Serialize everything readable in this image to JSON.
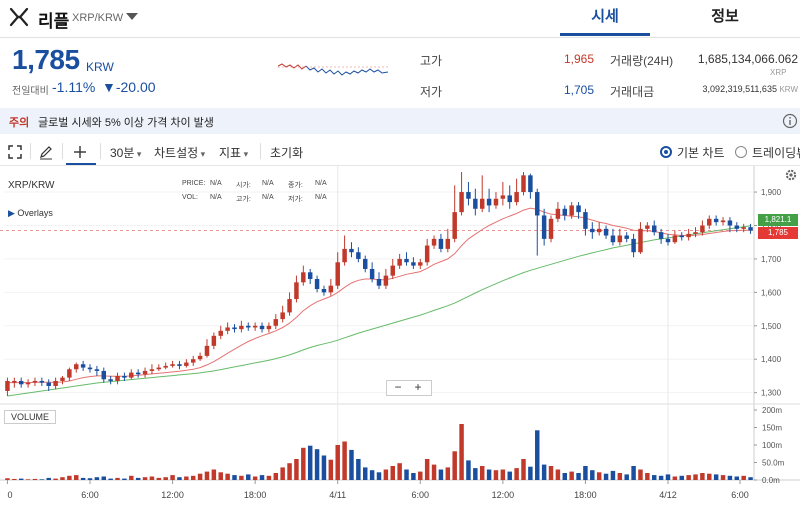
{
  "header": {
    "coin_name": "리플",
    "pair": "XRP/KRW",
    "tabs": [
      {
        "label": "시세",
        "active": true
      },
      {
        "label": "정보",
        "active": false
      }
    ]
  },
  "price": {
    "current": "1,785",
    "unit": "KRW",
    "change_label": "전일대비",
    "change_pct": "-1.11%",
    "change_abs": "▼-20.00"
  },
  "stats": {
    "high_label": "고가",
    "high": "1,965",
    "low_label": "저가",
    "low": "1,705",
    "volume_label": "거래량(24H)",
    "volume": "1,685,134,066.062",
    "volume_unit": "XRP",
    "amount_label": "거래대금",
    "amount": "3,092,319,511,635",
    "amount_unit": "KRW"
  },
  "notice": {
    "tag": "주의",
    "text": "글로벌 시세와 5% 이상 가격 차이 발생"
  },
  "toolbar": {
    "interval": "30분",
    "chart_settings": "차트설정",
    "indicators": "지표",
    "reset": "초기화",
    "basic_chart": "기본 차트",
    "tradingview": "트레이딩뷰"
  },
  "colors": {
    "up": "#c0392b",
    "down": "#1a4fa0",
    "ma_fast": "#e57373",
    "ma_slow": "#66bb6a",
    "accent": "#1a4fa0"
  },
  "icons": [
    "ripple-logo-icon",
    "chevron-down-icon",
    "info-icon",
    "fullscreen-icon",
    "pencil-icon",
    "crosshair-icon",
    "settings-icon"
  ],
  "chart_data": {
    "type": "candlestick",
    "symbol": "XRP/KRW",
    "overlays_label": "Overlays",
    "ohlc_readout": {
      "labels": [
        "PRICE:",
        "시가:",
        "종가:",
        "VOL:",
        "고가:",
        "저가:"
      ],
      "values": [
        "N/A",
        "N/A",
        "N/A",
        "N/A",
        "N/A",
        "N/A"
      ]
    },
    "x_ticks": [
      "0",
      "6:00",
      "12:00",
      "18:00",
      "4/11",
      "6:00",
      "12:00",
      "18:00",
      "4/12",
      "6:00"
    ],
    "y_ticks": [
      "1,900",
      "1,800",
      "1,700",
      "1,600",
      "1,500",
      "1,400",
      "1,300"
    ],
    "y_range": [
      1290,
      1960
    ],
    "last_price_label": "1,785",
    "ma_label": "1,821.1",
    "zoom_out": "−",
    "zoom_in": "+",
    "volume_label": "VOLUME",
    "volume_ticks": [
      "200m",
      "150m",
      "100m",
      "50.0m",
      "0.0m"
    ],
    "volume_range": [
      0,
      200
    ],
    "candles": [
      [
        1305,
        1335,
        1290,
        1345
      ],
      [
        1330,
        1335,
        1315,
        1345
      ],
      [
        1335,
        1325,
        1315,
        1345
      ],
      [
        1325,
        1330,
        1315,
        1340
      ],
      [
        1330,
        1335,
        1320,
        1345
      ],
      [
        1335,
        1330,
        1320,
        1345
      ],
      [
        1330,
        1320,
        1305,
        1340
      ],
      [
        1320,
        1335,
        1310,
        1345
      ],
      [
        1335,
        1345,
        1325,
        1350
      ],
      [
        1345,
        1370,
        1335,
        1375
      ],
      [
        1370,
        1385,
        1360,
        1390
      ],
      [
        1385,
        1375,
        1365,
        1395
      ],
      [
        1375,
        1370,
        1360,
        1385
      ],
      [
        1370,
        1365,
        1350,
        1380
      ],
      [
        1365,
        1340,
        1330,
        1375
      ],
      [
        1340,
        1335,
        1325,
        1350
      ],
      [
        1335,
        1350,
        1325,
        1360
      ],
      [
        1350,
        1345,
        1335,
        1360
      ],
      [
        1345,
        1360,
        1340,
        1370
      ],
      [
        1360,
        1355,
        1345,
        1370
      ],
      [
        1355,
        1365,
        1345,
        1375
      ],
      [
        1365,
        1370,
        1355,
        1385
      ],
      [
        1370,
        1375,
        1365,
        1385
      ],
      [
        1375,
        1380,
        1370,
        1390
      ],
      [
        1380,
        1385,
        1375,
        1395
      ],
      [
        1385,
        1380,
        1370,
        1395
      ],
      [
        1380,
        1390,
        1375,
        1400
      ],
      [
        1390,
        1400,
        1380,
        1410
      ],
      [
        1400,
        1410,
        1395,
        1420
      ],
      [
        1410,
        1440,
        1405,
        1460
      ],
      [
        1440,
        1470,
        1430,
        1480
      ],
      [
        1470,
        1485,
        1460,
        1500
      ],
      [
        1485,
        1495,
        1475,
        1510
      ],
      [
        1495,
        1490,
        1480,
        1505
      ],
      [
        1490,
        1500,
        1480,
        1515
      ],
      [
        1500,
        1495,
        1485,
        1510
      ],
      [
        1495,
        1500,
        1485,
        1510
      ],
      [
        1500,
        1490,
        1480,
        1510
      ],
      [
        1490,
        1500,
        1480,
        1510
      ],
      [
        1500,
        1520,
        1490,
        1535
      ],
      [
        1520,
        1540,
        1510,
        1560
      ],
      [
        1540,
        1580,
        1530,
        1600
      ],
      [
        1580,
        1630,
        1570,
        1650
      ],
      [
        1630,
        1660,
        1620,
        1680
      ],
      [
        1660,
        1640,
        1625,
        1670
      ],
      [
        1640,
        1610,
        1600,
        1650
      ],
      [
        1610,
        1600,
        1590,
        1620
      ],
      [
        1600,
        1620,
        1590,
        1640
      ],
      [
        1620,
        1690,
        1610,
        1720
      ],
      [
        1690,
        1730,
        1680,
        1770
      ],
      [
        1730,
        1720,
        1705,
        1750
      ],
      [
        1720,
        1700,
        1690,
        1735
      ],
      [
        1700,
        1670,
        1660,
        1710
      ],
      [
        1670,
        1640,
        1630,
        1690
      ],
      [
        1640,
        1620,
        1610,
        1660
      ],
      [
        1620,
        1650,
        1610,
        1670
      ],
      [
        1650,
        1680,
        1640,
        1700
      ],
      [
        1680,
        1700,
        1670,
        1715
      ],
      [
        1700,
        1690,
        1680,
        1720
      ],
      [
        1690,
        1680,
        1670,
        1705
      ],
      [
        1680,
        1690,
        1670,
        1700
      ],
      [
        1690,
        1740,
        1680,
        1760
      ],
      [
        1740,
        1760,
        1730,
        1770
      ],
      [
        1760,
        1730,
        1720,
        1775
      ],
      [
        1730,
        1760,
        1720,
        1790
      ],
      [
        1760,
        1840,
        1750,
        1920
      ],
      [
        1840,
        1900,
        1830,
        1960
      ],
      [
        1900,
        1880,
        1860,
        1930
      ],
      [
        1880,
        1850,
        1830,
        1910
      ],
      [
        1850,
        1880,
        1840,
        1950
      ],
      [
        1880,
        1860,
        1840,
        1910
      ],
      [
        1860,
        1880,
        1850,
        1900
      ],
      [
        1880,
        1890,
        1860,
        1930
      ],
      [
        1890,
        1870,
        1850,
        1920
      ],
      [
        1870,
        1900,
        1860,
        1940
      ],
      [
        1900,
        1950,
        1890,
        1960
      ],
      [
        1950,
        1900,
        1880,
        1955
      ],
      [
        1900,
        1830,
        1710,
        1910
      ],
      [
        1830,
        1760,
        1740,
        1850
      ],
      [
        1760,
        1820,
        1750,
        1830
      ],
      [
        1820,
        1850,
        1810,
        1870
      ],
      [
        1850,
        1830,
        1815,
        1860
      ],
      [
        1830,
        1860,
        1820,
        1870
      ],
      [
        1860,
        1840,
        1820,
        1870
      ],
      [
        1840,
        1790,
        1770,
        1850
      ],
      [
        1790,
        1780,
        1760,
        1810
      ],
      [
        1780,
        1790,
        1770,
        1810
      ],
      [
        1790,
        1770,
        1760,
        1800
      ],
      [
        1770,
        1750,
        1740,
        1790
      ],
      [
        1750,
        1770,
        1740,
        1790
      ],
      [
        1770,
        1760,
        1750,
        1780
      ],
      [
        1760,
        1720,
        1705,
        1775
      ],
      [
        1720,
        1790,
        1715,
        1810
      ],
      [
        1790,
        1800,
        1780,
        1810
      ],
      [
        1800,
        1780,
        1770,
        1815
      ],
      [
        1780,
        1760,
        1745,
        1790
      ],
      [
        1760,
        1750,
        1740,
        1775
      ],
      [
        1750,
        1770,
        1745,
        1785
      ],
      [
        1770,
        1765,
        1755,
        1780
      ],
      [
        1765,
        1775,
        1755,
        1790
      ],
      [
        1775,
        1780,
        1765,
        1795
      ],
      [
        1780,
        1800,
        1770,
        1815
      ],
      [
        1800,
        1820,
        1790,
        1830
      ],
      [
        1820,
        1810,
        1800,
        1830
      ],
      [
        1810,
        1815,
        1800,
        1825
      ],
      [
        1815,
        1800,
        1780,
        1825
      ],
      [
        1800,
        1790,
        1780,
        1810
      ],
      [
        1790,
        1795,
        1780,
        1805
      ],
      [
        1795,
        1785,
        1775,
        1805
      ]
    ],
    "volume": [
      5,
      3,
      4,
      2,
      3,
      2,
      6,
      4,
      8,
      12,
      14,
      6,
      5,
      8,
      10,
      4,
      6,
      4,
      12,
      6,
      8,
      10,
      6,
      8,
      14,
      8,
      10,
      12,
      18,
      24,
      30,
      22,
      18,
      14,
      12,
      16,
      10,
      14,
      12,
      20,
      36,
      48,
      60,
      92,
      98,
      88,
      70,
      58,
      100,
      110,
      86,
      60,
      36,
      28,
      22,
      30,
      40,
      48,
      30,
      20,
      24,
      60,
      44,
      30,
      36,
      82,
      160,
      56,
      34,
      40,
      30,
      28,
      30,
      24,
      34,
      60,
      38,
      142,
      44,
      40,
      30,
      20,
      24,
      20,
      40,
      28,
      22,
      18,
      26,
      20,
      16,
      40,
      30,
      20,
      14,
      12,
      16,
      10,
      12,
      14,
      16,
      20,
      18,
      16,
      14,
      12,
      10,
      12,
      8
    ],
    "ma_fast": [
      1330,
      1330,
      1330,
      1330,
      1331,
      1331,
      1331,
      1331,
      1332,
      1335,
      1340,
      1345,
      1348,
      1350,
      1350,
      1349,
      1349,
      1349,
      1350,
      1352,
      1354,
      1356,
      1358,
      1360,
      1362,
      1364,
      1367,
      1370,
      1375,
      1383,
      1393,
      1405,
      1418,
      1430,
      1442,
      1453,
      1462,
      1470,
      1477,
      1485,
      1495,
      1508,
      1525,
      1545,
      1560,
      1572,
      1580,
      1588,
      1600,
      1615,
      1628,
      1636,
      1640,
      1640,
      1638,
      1638,
      1642,
      1648,
      1654,
      1658,
      1662,
      1672,
      1684,
      1692,
      1700,
      1716,
      1740,
      1760,
      1774,
      1788,
      1800,
      1810,
      1820,
      1828,
      1836,
      1846,
      1852,
      1848,
      1840,
      1834,
      1832,
      1830,
      1828,
      1826,
      1822,
      1816,
      1810,
      1806,
      1800,
      1796,
      1792,
      1786,
      1784,
      1784,
      1782,
      1778,
      1774,
      1772,
      1770,
      1770,
      1771,
      1773,
      1776,
      1779,
      1782,
      1784,
      1785,
      1786,
      1786
    ],
    "ma_slow": [
      1290,
      1293,
      1296,
      1299,
      1302,
      1305,
      1308,
      1311,
      1314,
      1317,
      1320,
      1323,
      1326,
      1329,
      1331,
      1333,
      1335,
      1337,
      1339,
      1341,
      1343,
      1345,
      1347,
      1349,
      1351,
      1353,
      1355,
      1357,
      1359,
      1362,
      1365,
      1369,
      1373,
      1377,
      1381,
      1385,
      1389,
      1393,
      1397,
      1402,
      1407,
      1413,
      1420,
      1428,
      1435,
      1441,
      1446,
      1451,
      1457,
      1464,
      1471,
      1478,
      1484,
      1490,
      1496,
      1502,
      1508,
      1514,
      1520,
      1526,
      1532,
      1539,
      1546,
      1553,
      1560,
      1568,
      1578,
      1588,
      1598,
      1608,
      1617,
      1626,
      1635,
      1643,
      1651,
      1659,
      1666,
      1672,
      1678,
      1684,
      1690,
      1696,
      1702,
      1708,
      1713,
      1718,
      1723,
      1728,
      1733,
      1737,
      1741,
      1745,
      1749,
      1753,
      1757,
      1760,
      1763,
      1766,
      1769,
      1772,
      1775,
      1778,
      1781,
      1784,
      1787,
      1790,
      1793,
      1796,
      1799
    ]
  }
}
